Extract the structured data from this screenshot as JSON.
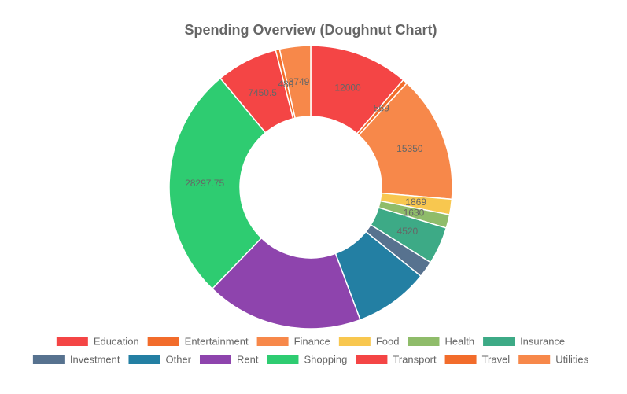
{
  "chart_data": {
    "type": "doughnut",
    "title": "Spending Overview (Doughnut Chart)",
    "legend_position": "bottom",
    "slices": [
      {
        "label": "Transport",
        "value": 12000,
        "color": "#f44545"
      },
      {
        "label": "Travel",
        "value": 569,
        "color": "#f26c2b"
      },
      {
        "label": "Utilities",
        "value": 15350,
        "color": "#f7884a"
      },
      {
        "label": "Food",
        "value": 1869,
        "color": "#f8c74f"
      },
      {
        "label": "Health",
        "value": 1630,
        "color": "#8fbc6a"
      },
      {
        "label": "Insurance",
        "value": 4520,
        "color": "#3daa86"
      },
      {
        "label": "Investment",
        "value": 2000,
        "color": "#57728f"
      },
      {
        "label": "Other",
        "value": 9000,
        "color": "#237fa3"
      },
      {
        "label": "Rent",
        "value": 19000,
        "color": "#8e44ad"
      },
      {
        "label": "Shopping",
        "value": 28297.75,
        "color": "#2ecc71"
      },
      {
        "label": "Education",
        "value": 7450.5,
        "color": "#f44545"
      },
      {
        "label": "Entertainment",
        "value": 480,
        "color": "#f26c2b"
      },
      {
        "label": "Finance",
        "value": 3749,
        "color": "#f7884a"
      }
    ],
    "slice_labels": [
      "12000",
      "569",
      "15350",
      "1869",
      "1630",
      "4520",
      "",
      "",
      "",
      "28297.75",
      "7450.5",
      "480",
      "3749"
    ],
    "legend": [
      {
        "label": "Education",
        "color": "#f44545"
      },
      {
        "label": "Entertainment",
        "color": "#f26c2b"
      },
      {
        "label": "Finance",
        "color": "#f7884a"
      },
      {
        "label": "Food",
        "color": "#f8c74f"
      },
      {
        "label": "Health",
        "color": "#8fbc6a"
      },
      {
        "label": "Insurance",
        "color": "#3daa86"
      },
      {
        "label": "Investment",
        "color": "#57728f"
      },
      {
        "label": "Other",
        "color": "#237fa3"
      },
      {
        "label": "Rent",
        "color": "#8e44ad"
      },
      {
        "label": "Shopping",
        "color": "#2ecc71"
      },
      {
        "label": "Transport",
        "color": "#f44545"
      },
      {
        "label": "Travel",
        "color": "#f26c2b"
      },
      {
        "label": "Utilities",
        "color": "#f7884a"
      }
    ]
  }
}
